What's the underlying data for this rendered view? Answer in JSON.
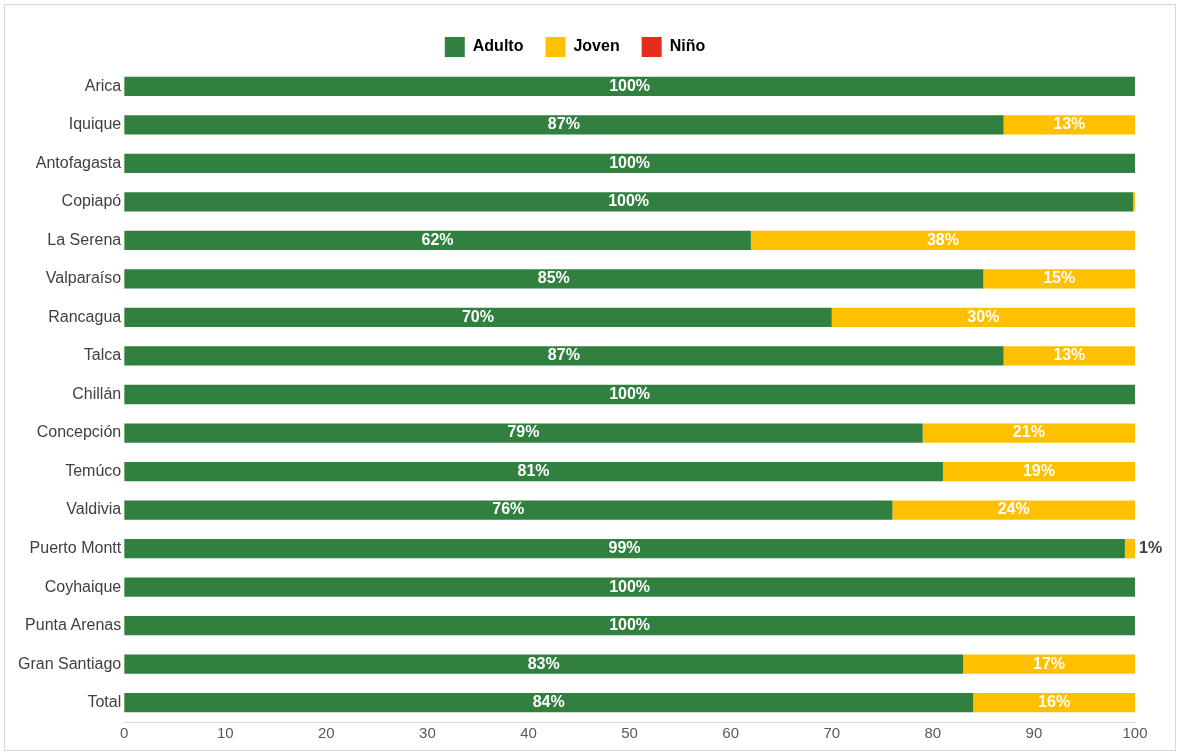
{
  "chart_data": {
    "type": "bar",
    "orientation": "horizontal",
    "stacked": true,
    "legend": "top",
    "grid": false,
    "categories": [
      "Arica",
      "Iquique",
      "Antofagasta",
      "Copiapó",
      "La Serena",
      "Valparaíso",
      "Rancagua",
      "Talca",
      "Chillán",
      "Concepción",
      "Temúco",
      "Valdivia",
      "Puerto Montt",
      "Coyhaique",
      "Punta Arenas",
      "Gran Santiago",
      "Total"
    ],
    "xlim": [
      0,
      100
    ],
    "xticks": [
      0,
      10,
      20,
      30,
      40,
      50,
      60,
      70,
      80,
      90,
      100
    ],
    "series": [
      {
        "name": "Adulto",
        "color": "#31803f",
        "values": [
          100,
          87,
          100,
          99.8,
          62,
          85,
          70,
          87,
          100,
          79,
          81,
          76,
          99,
          100,
          100,
          83,
          84
        ],
        "value_labels": [
          "100%",
          "87%",
          "100%",
          "100%",
          "62%",
          "85%",
          "70%",
          "87%",
          "100%",
          "79%",
          "81%",
          "76%",
          "99%",
          "100%",
          "100%",
          "83%",
          "84%"
        ]
      },
      {
        "name": "Joven",
        "color": "#ffc000",
        "values": [
          0,
          13,
          0,
          0.2,
          38,
          15,
          30,
          13,
          0,
          21,
          19,
          24,
          1,
          0,
          0,
          17,
          16
        ],
        "value_labels": [
          null,
          "13%",
          null,
          null,
          "38%",
          "15%",
          "30%",
          "13%",
          null,
          "21%",
          "19%",
          "24%",
          "1%",
          null,
          null,
          "17%",
          "16%"
        ]
      },
      {
        "name": "Niño",
        "color": "#e42d1d",
        "values": [
          0,
          0,
          0,
          0,
          0,
          0,
          0,
          0,
          0,
          0,
          0,
          0,
          0,
          0,
          0,
          0,
          0
        ],
        "value_labels": [
          null,
          null,
          null,
          null,
          null,
          null,
          null,
          null,
          null,
          null,
          null,
          null,
          null,
          null,
          null,
          null,
          null
        ]
      }
    ]
  }
}
